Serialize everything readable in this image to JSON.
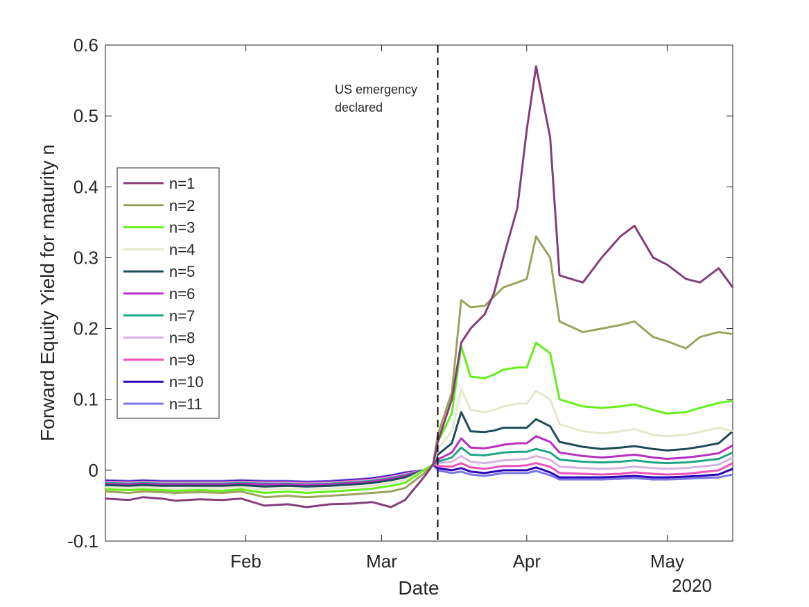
{
  "chart_data": {
    "type": "line",
    "xlabel": "Date",
    "ylabel": "Forward Equity Yield for maturity n",
    "x_tick_labels": [
      "Feb",
      "Mar",
      "Apr",
      "May"
    ],
    "x_tick_values": [
      "2020-02-01",
      "2020-03-01",
      "2020-04-01",
      "2020-05-01"
    ],
    "year_label": "2020",
    "xlim": [
      "2020-01-02",
      "2020-05-15"
    ],
    "ylim": [
      -0.1,
      0.6
    ],
    "y_ticks": [
      -0.1,
      0,
      0.1,
      0.2,
      0.3,
      0.4,
      0.5,
      0.6
    ],
    "y_tick_labels": [
      "-0.1",
      "0",
      "0.1",
      "0.2",
      "0.3",
      "0.4",
      "0.5",
      "0.6"
    ],
    "grid": false,
    "legend_position": "left",
    "annotation": {
      "date": "2020-03-13",
      "lines": [
        "US emergency",
        "declared"
      ],
      "style": "dashed vertical line"
    },
    "dates": [
      "2020-01-02",
      "2020-01-07",
      "2020-01-10",
      "2020-01-14",
      "2020-01-17",
      "2020-01-22",
      "2020-01-27",
      "2020-01-31",
      "2020-02-05",
      "2020-02-10",
      "2020-02-14",
      "2020-02-19",
      "2020-02-24",
      "2020-02-28",
      "2020-03-03",
      "2020-03-06",
      "2020-03-10",
      "2020-03-12",
      "2020-03-13",
      "2020-03-16",
      "2020-03-18",
      "2020-03-20",
      "2020-03-23",
      "2020-03-25",
      "2020-03-27",
      "2020-03-30",
      "2020-04-01",
      "2020-04-03",
      "2020-04-06",
      "2020-04-08",
      "2020-04-13",
      "2020-04-17",
      "2020-04-21",
      "2020-04-24",
      "2020-04-28",
      "2020-05-01",
      "2020-05-05",
      "2020-05-08",
      "2020-05-12",
      "2020-05-15"
    ],
    "series": [
      {
        "name": "n=1",
        "color": "#853e7a",
        "values": [
          -0.04,
          -0.042,
          -0.038,
          -0.04,
          -0.043,
          -0.041,
          -0.042,
          -0.04,
          -0.05,
          -0.048,
          -0.052,
          -0.048,
          -0.047,
          -0.045,
          -0.052,
          -0.042,
          -0.01,
          0.008,
          0.04,
          0.1,
          0.18,
          0.2,
          0.22,
          0.25,
          0.3,
          0.37,
          0.48,
          0.57,
          0.47,
          0.275,
          0.265,
          0.3,
          0.33,
          0.345,
          0.3,
          0.29,
          0.27,
          0.265,
          0.285,
          0.258
        ]
      },
      {
        "name": "n=2",
        "color": "#9ba45e",
        "values": [
          -0.03,
          -0.032,
          -0.03,
          -0.031,
          -0.032,
          -0.031,
          -0.032,
          -0.03,
          -0.038,
          -0.036,
          -0.038,
          -0.036,
          -0.034,
          -0.032,
          -0.03,
          -0.025,
          -0.005,
          0.008,
          0.05,
          0.11,
          0.24,
          0.23,
          0.232,
          0.245,
          0.258,
          0.265,
          0.27,
          0.33,
          0.3,
          0.21,
          0.195,
          0.2,
          0.205,
          0.21,
          0.188,
          0.182,
          0.172,
          0.188,
          0.195,
          0.192
        ]
      },
      {
        "name": "n=3",
        "color": "#66ef1c",
        "values": [
          -0.027,
          -0.028,
          -0.027,
          -0.028,
          -0.029,
          -0.028,
          -0.029,
          -0.027,
          -0.032,
          -0.03,
          -0.032,
          -0.03,
          -0.028,
          -0.026,
          -0.022,
          -0.018,
          0.0,
          0.008,
          0.04,
          0.08,
          0.175,
          0.132,
          0.13,
          0.135,
          0.142,
          0.145,
          0.145,
          0.18,
          0.165,
          0.1,
          0.09,
          0.088,
          0.09,
          0.093,
          0.085,
          0.08,
          0.082,
          0.088,
          0.095,
          0.098
        ]
      },
      {
        "name": "n=4",
        "color": "#e5e8cc",
        "values": [
          -0.024,
          -0.025,
          -0.024,
          -0.025,
          -0.026,
          -0.025,
          -0.025,
          -0.024,
          -0.027,
          -0.026,
          -0.027,
          -0.026,
          -0.024,
          -0.022,
          -0.018,
          -0.014,
          0.0,
          0.008,
          0.03,
          0.055,
          0.115,
          0.085,
          0.082,
          0.085,
          0.09,
          0.094,
          0.094,
          0.112,
          0.1,
          0.065,
          0.055,
          0.052,
          0.055,
          0.058,
          0.05,
          0.048,
          0.05,
          0.054,
          0.06,
          0.055
        ]
      },
      {
        "name": "n=5",
        "color": "#1e4a5a",
        "values": [
          -0.021,
          -0.022,
          -0.021,
          -0.022,
          -0.022,
          -0.022,
          -0.022,
          -0.021,
          -0.023,
          -0.022,
          -0.023,
          -0.022,
          -0.02,
          -0.018,
          -0.014,
          -0.01,
          0.0,
          0.008,
          0.022,
          0.038,
          0.082,
          0.055,
          0.054,
          0.056,
          0.06,
          0.06,
          0.06,
          0.072,
          0.062,
          0.04,
          0.033,
          0.03,
          0.032,
          0.034,
          0.03,
          0.028,
          0.03,
          0.033,
          0.038,
          0.055
        ]
      },
      {
        "name": "n=6",
        "color": "#b82fc3",
        "values": [
          -0.019,
          -0.02,
          -0.019,
          -0.02,
          -0.02,
          -0.02,
          -0.02,
          -0.019,
          -0.02,
          -0.02,
          -0.021,
          -0.02,
          -0.018,
          -0.016,
          -0.012,
          -0.008,
          0.0,
          0.008,
          0.015,
          0.025,
          0.045,
          0.032,
          0.031,
          0.033,
          0.036,
          0.038,
          0.038,
          0.048,
          0.04,
          0.025,
          0.02,
          0.018,
          0.02,
          0.022,
          0.018,
          0.016,
          0.018,
          0.02,
          0.024,
          0.035
        ]
      },
      {
        "name": "n=7",
        "color": "#1ea684",
        "values": [
          -0.018,
          -0.019,
          -0.018,
          -0.019,
          -0.019,
          -0.019,
          -0.019,
          -0.018,
          -0.019,
          -0.019,
          -0.02,
          -0.019,
          -0.017,
          -0.015,
          -0.011,
          -0.007,
          0.0,
          0.008,
          0.012,
          0.018,
          0.032,
          0.022,
          0.021,
          0.023,
          0.025,
          0.026,
          0.026,
          0.03,
          0.025,
          0.015,
          0.012,
          0.011,
          0.012,
          0.014,
          0.011,
          0.01,
          0.011,
          0.013,
          0.016,
          0.025
        ]
      },
      {
        "name": "n=8",
        "color": "#d5b4e3",
        "values": [
          -0.017,
          -0.018,
          -0.017,
          -0.018,
          -0.018,
          -0.018,
          -0.018,
          -0.017,
          -0.018,
          -0.018,
          -0.019,
          -0.018,
          -0.016,
          -0.014,
          -0.01,
          -0.006,
          0.0,
          0.008,
          0.01,
          0.012,
          0.02,
          0.012,
          0.01,
          0.012,
          0.014,
          0.015,
          0.016,
          0.02,
          0.015,
          0.005,
          0.003,
          0.002,
          0.003,
          0.005,
          0.003,
          0.002,
          0.003,
          0.005,
          0.008,
          0.018
        ]
      },
      {
        "name": "n=9",
        "color": "#ee53b9",
        "values": [
          -0.016,
          -0.017,
          -0.016,
          -0.017,
          -0.017,
          -0.017,
          -0.017,
          -0.016,
          -0.017,
          -0.017,
          -0.018,
          -0.017,
          -0.015,
          -0.013,
          -0.009,
          -0.005,
          0.0,
          0.008,
          0.006,
          0.005,
          0.01,
          0.004,
          0.002,
          0.004,
          0.006,
          0.006,
          0.007,
          0.01,
          0.005,
          -0.004,
          -0.005,
          -0.006,
          -0.005,
          -0.003,
          -0.005,
          -0.006,
          -0.005,
          -0.003,
          0.0,
          0.01
        ]
      },
      {
        "name": "n=10",
        "color": "#2b04b4",
        "values": [
          -0.015,
          -0.016,
          -0.015,
          -0.016,
          -0.016,
          -0.016,
          -0.016,
          -0.015,
          -0.016,
          -0.016,
          -0.017,
          -0.016,
          -0.014,
          -0.012,
          -0.008,
          -0.004,
          0.0,
          0.008,
          0.003,
          0.0,
          0.003,
          -0.002,
          -0.004,
          -0.002,
          0.0,
          0.0,
          0.0,
          0.004,
          -0.003,
          -0.01,
          -0.01,
          -0.01,
          -0.009,
          -0.008,
          -0.01,
          -0.01,
          -0.009,
          -0.008,
          -0.006,
          0.002
        ]
      },
      {
        "name": "n=11",
        "color": "#7b76e8",
        "values": [
          -0.014,
          -0.015,
          -0.014,
          -0.015,
          -0.015,
          -0.015,
          -0.015,
          -0.014,
          -0.015,
          -0.015,
          -0.016,
          -0.015,
          -0.013,
          -0.011,
          -0.007,
          -0.003,
          0.0,
          0.008,
          0.0,
          -0.004,
          -0.002,
          -0.006,
          -0.008,
          -0.006,
          -0.004,
          -0.004,
          -0.004,
          -0.001,
          -0.007,
          -0.013,
          -0.013,
          -0.013,
          -0.012,
          -0.011,
          -0.013,
          -0.013,
          -0.012,
          -0.011,
          -0.01,
          -0.006
        ]
      }
    ]
  }
}
